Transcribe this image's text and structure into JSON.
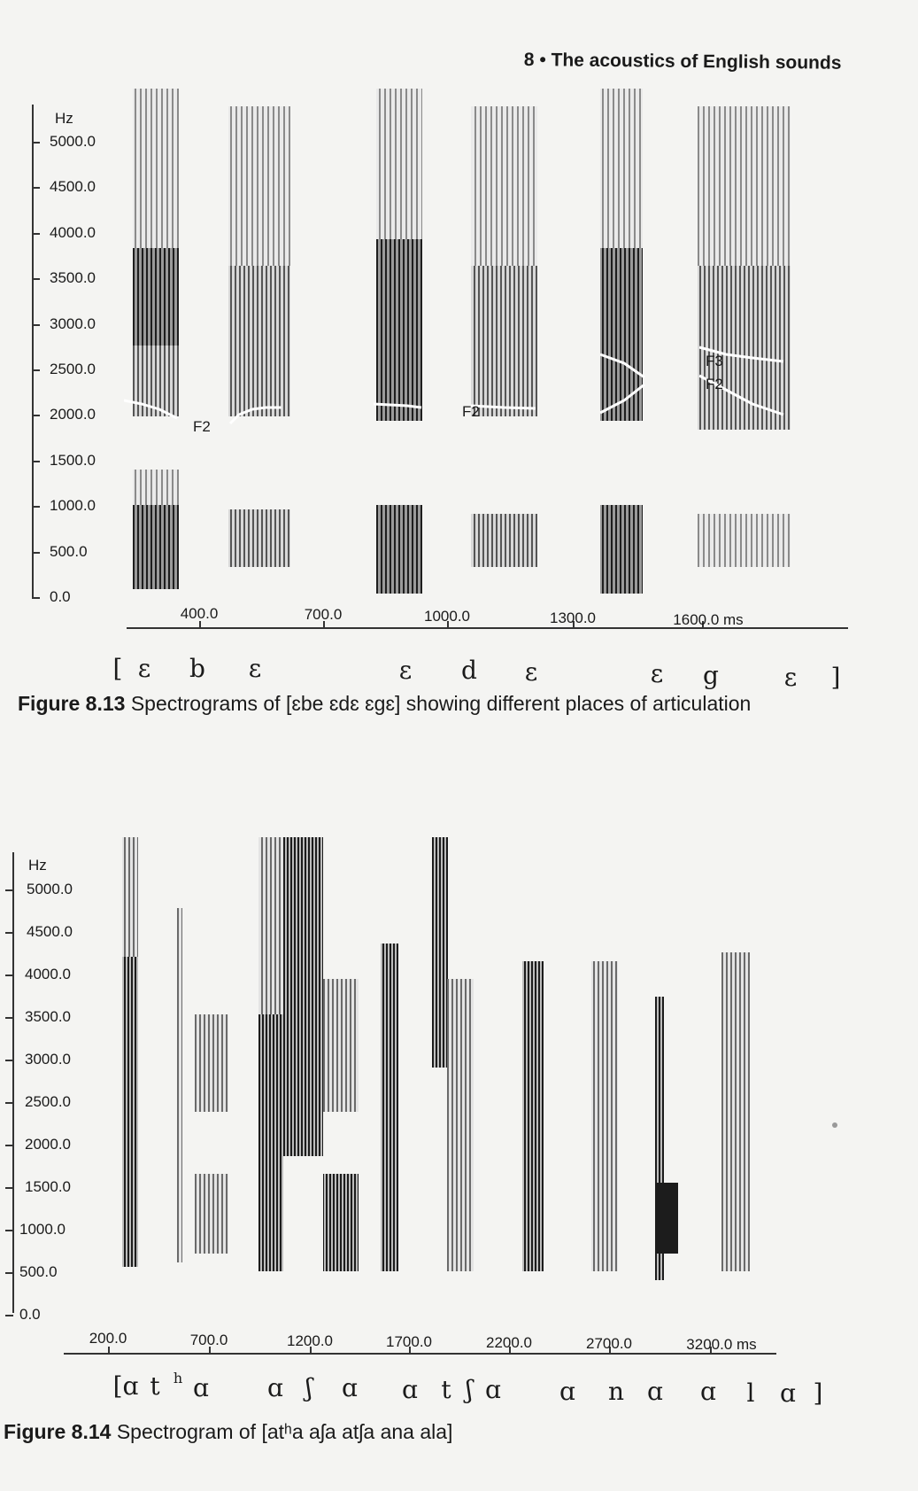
{
  "running_header": "8 • The acoustics of English sounds",
  "figure_8_13": {
    "y_unit": "Hz",
    "y_ticks": [
      "5000.0",
      "4500.0",
      "4000.0",
      "3500.0",
      "3000.0",
      "2500.0",
      "2000.0",
      "1500.0",
      "1000.0",
      "500.0",
      "0.0"
    ],
    "x_ticks": [
      "400.0",
      "700.0",
      "1000.0",
      "1300.0",
      "1600.0 ms"
    ],
    "formant_labels": [
      "F2",
      "F2",
      "F3",
      "F2"
    ],
    "transcription": [
      "[",
      "ɛ",
      "b",
      "ɛ",
      "ɛ",
      "d",
      "ɛ",
      "ɛ",
      "g",
      "ɛ",
      "]"
    ],
    "caption_number": "Figure 8.13",
    "caption_text": "Spectrograms of [ɛbe ɛdɛ ɛgɛ] showing different places of articulation"
  },
  "figure_8_14": {
    "y_unit": "Hz",
    "y_ticks": [
      "5000.0",
      "4500.0",
      "4000.0",
      "3500.0",
      "3000.0",
      "2500.0",
      "2000.0",
      "1500.0",
      "1000.0",
      "500.0",
      "0.0"
    ],
    "x_ticks": [
      "200.0",
      "700.0",
      "1200.0",
      "1700.0",
      "2200.0",
      "2700.0",
      "3200.0 ms"
    ],
    "transcription": [
      "[ɑ",
      "t",
      "ɑ",
      "ɑ",
      "ʃ",
      "ɑ",
      "ɑ",
      "t",
      "ʃ",
      "ɑ",
      "ɑ",
      "n",
      "ɑ",
      "ɑ",
      "l",
      "ɑ",
      "]"
    ],
    "aspiration_mark": "h",
    "caption_number": "Figure 8.14",
    "caption_text": "Spectrogram of [atʰa aʃa atʃa ana ala]"
  }
}
